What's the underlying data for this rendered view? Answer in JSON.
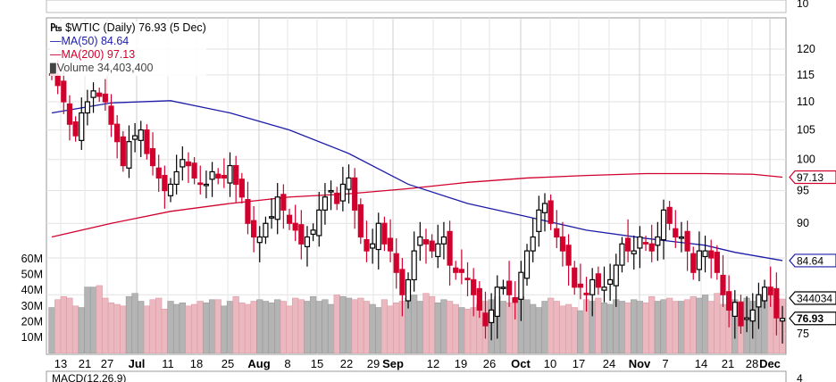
{
  "chart_data": {
    "type": "candlestick",
    "symbol_title": "$WTIC (Daily) 76.93 (5 Dec)",
    "legend": {
      "ma50": "MA(50) 84.64",
      "ma200": "MA(200) 97.13",
      "volume": "Volume 34,403,400"
    },
    "colors": {
      "up": "#000000",
      "down": "#d1002d",
      "ma50": "#1c1ca8",
      "ma200": "#d1002d",
      "vol_up": "#b4b4b4",
      "vol_down": "#ecb8c0"
    },
    "price_axis": {
      "scale": "log",
      "range": [
        72,
        124
      ],
      "ticks": [
        "120",
        "115",
        "110",
        "105",
        "100",
        "95",
        "90",
        "75"
      ],
      "tick_values": [
        120,
        115,
        110,
        105,
        100,
        95,
        90,
        75
      ]
    },
    "volume_axis": {
      "unit": "M",
      "ticks": [
        "60M",
        "50M",
        "40M",
        "30M",
        "20M",
        "10M"
      ],
      "tick_values": [
        60,
        50,
        40,
        30,
        20,
        10
      ]
    },
    "callouts": {
      "ma200": "97.13",
      "ma50": "84.64",
      "volume": "344034",
      "last": "76.93"
    },
    "upper_panel_label": "10",
    "lower_panel_label": "4",
    "macd_label": "MACD(12,26,9)",
    "x_labels": [
      "13",
      "21",
      "27",
      "Jul",
      "11",
      "18",
      "25",
      "Aug",
      "8",
      "15",
      "22",
      "29",
      "Sep",
      "12",
      "19",
      "26",
      "Oct",
      "10",
      "17",
      "24",
      "Nov",
      "7",
      "14",
      "21",
      "28",
      "Dec"
    ],
    "closes": [
      115,
      113,
      110,
      106,
      104,
      108,
      110,
      112,
      111,
      110,
      106,
      103,
      99,
      103,
      104,
      105,
      101,
      99,
      97,
      95,
      96,
      98,
      100,
      99,
      97,
      96,
      96,
      98,
      97,
      97,
      99,
      96,
      94,
      90,
      88,
      88,
      90,
      91,
      94,
      92,
      90,
      89,
      87,
      88,
      89,
      92,
      94,
      95,
      93,
      96,
      97,
      92,
      88,
      86,
      87,
      90,
      87,
      86,
      83,
      80,
      82,
      86,
      88,
      87,
      86,
      87,
      88,
      84,
      83,
      83,
      82,
      80,
      78,
      76,
      78,
      81,
      81,
      80,
      79,
      83,
      86,
      88,
      92,
      93,
      90,
      88,
      86,
      84,
      81,
      81,
      80,
      82,
      81,
      81,
      82,
      84,
      87,
      86,
      86,
      88,
      87,
      86,
      88,
      92,
      90,
      88,
      88,
      86,
      83,
      86,
      86,
      85,
      83,
      80,
      78,
      79,
      76,
      77,
      78,
      80,
      81,
      80,
      77,
      76.93
    ],
    "volumes_m": [
      29,
      34,
      36,
      35,
      30,
      29,
      42,
      42,
      43,
      35,
      32,
      31,
      30,
      36,
      38,
      33,
      30,
      34,
      35,
      28,
      33,
      31,
      32,
      30,
      31,
      33,
      32,
      34,
      34,
      30,
      33,
      36,
      32,
      31,
      33,
      34,
      33,
      32,
      34,
      33,
      30,
      35,
      34,
      33,
      36,
      33,
      34,
      31,
      37,
      36,
      35,
      34,
      35,
      33,
      31,
      29,
      34,
      30,
      32,
      33,
      35,
      37,
      33,
      38,
      36,
      32,
      34,
      33,
      31,
      29,
      28,
      29,
      31,
      33,
      34,
      36,
      33,
      32,
      35,
      36,
      34,
      31,
      29,
      33,
      35,
      33,
      30,
      31,
      29,
      27,
      34,
      33,
      35,
      32,
      31,
      34,
      33,
      32,
      34,
      33,
      32,
      36,
      33,
      34,
      35,
      33,
      33,
      34,
      36,
      35,
      37,
      33,
      38,
      31,
      30,
      34,
      33,
      35,
      33,
      36,
      35,
      37,
      32,
      34.4
    ],
    "ma50": [
      [
        0,
        108
      ],
      [
        10,
        109.8
      ],
      [
        20,
        110.2
      ],
      [
        30,
        108
      ],
      [
        40,
        105
      ],
      [
        50,
        101
      ],
      [
        60,
        96
      ],
      [
        70,
        93
      ],
      [
        80,
        91
      ],
      [
        90,
        89
      ],
      [
        100,
        87.8
      ],
      [
        110,
        86.8
      ],
      [
        115,
        85.8
      ],
      [
        123,
        84.64
      ]
    ],
    "ma200": [
      [
        0,
        88
      ],
      [
        10,
        90
      ],
      [
        20,
        91.8
      ],
      [
        30,
        93
      ],
      [
        40,
        94
      ],
      [
        50,
        94.5
      ],
      [
        60,
        95.3
      ],
      [
        70,
        96.3
      ],
      [
        80,
        97
      ],
      [
        90,
        97.4
      ],
      [
        100,
        97.7
      ],
      [
        110,
        97.7
      ],
      [
        118,
        97.6
      ],
      [
        123,
        97.13
      ]
    ]
  }
}
